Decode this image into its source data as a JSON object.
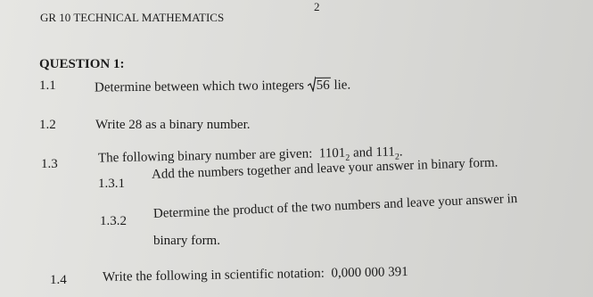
{
  "header": {
    "title": "GR 10 TECHNICAL MATHEMATICS",
    "page_number": "2"
  },
  "question": {
    "title": "QUESTION 1:",
    "items": [
      {
        "number": "1.1",
        "text_before": "Determine between which two integers",
        "radicand": "56",
        "text_after": "lie."
      },
      {
        "number": "1.2",
        "text": "Write 28 as a binary number."
      },
      {
        "number": "1.3",
        "text_before": "The following binary number are given:",
        "first": "1101",
        "first_base": "2",
        "joiner": "and",
        "second": "111",
        "second_base": "2",
        "end": ".",
        "subitems": [
          {
            "number": "1.3.1",
            "text": "Add the numbers together and leave your answer in binary form."
          },
          {
            "number": "1.3.2",
            "lines": [
              "Determine the product of the two numbers and leave your answer in",
              "binary form."
            ]
          }
        ]
      },
      {
        "number": "1.4",
        "text_before": "Write the following in scientific notation:",
        "value": "0,000 000 391"
      }
    ]
  }
}
